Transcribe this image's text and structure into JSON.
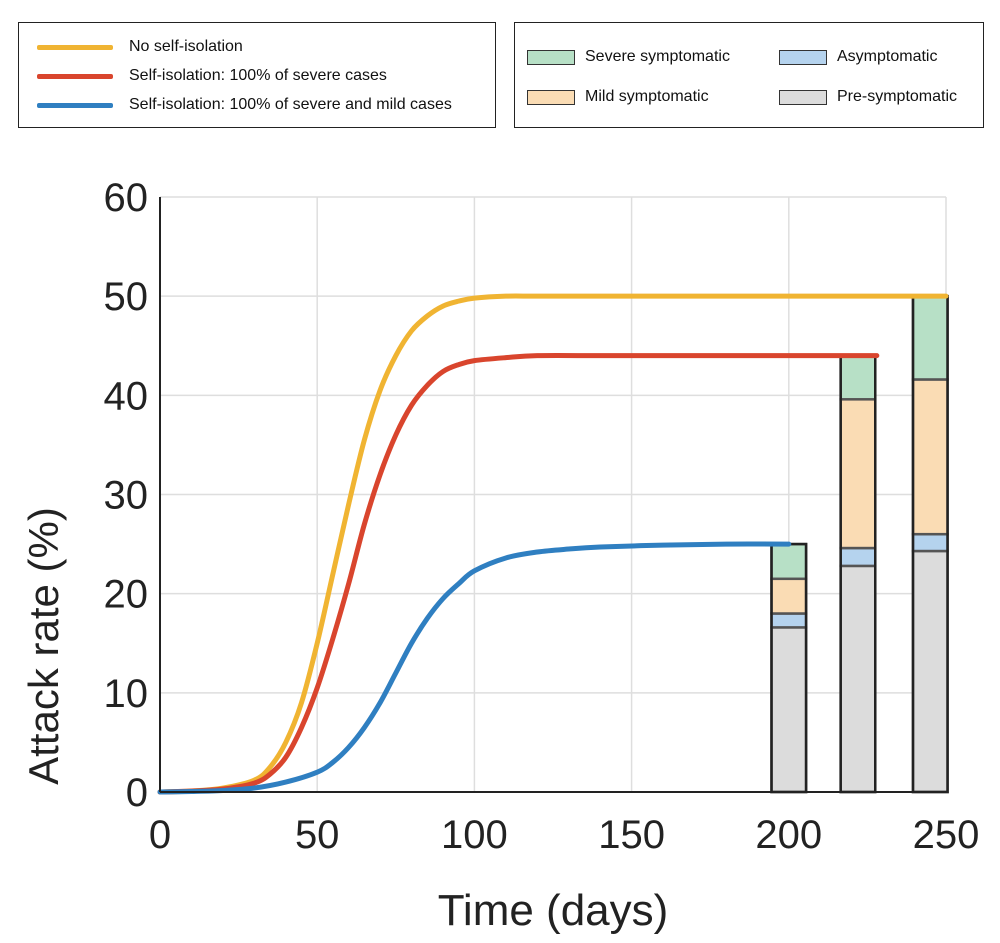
{
  "legend_lines": [
    {
      "label": "No self-isolation",
      "color": "#f0b432"
    },
    {
      "label": "Self-isolation: 100% of severe cases",
      "color": "#d9452d"
    },
    {
      "label": "Self-isolation: 100% of severe and mild cases",
      "color": "#2f7fc1"
    }
  ],
  "legend_bars": [
    {
      "label": "Severe symptomatic",
      "color": "#b7e0c6"
    },
    {
      "label": "Asymptomatic",
      "color": "#b5d3ee"
    },
    {
      "label": "Mild symptomatic",
      "color": "#fadcb4"
    },
    {
      "label": "Pre-symptomatic",
      "color": "#dcdcdc"
    }
  ],
  "chart_data": {
    "type": "line",
    "xlabel": "Time (days)",
    "ylabel": "Attack rate (%)",
    "xlim": [
      0,
      250
    ],
    "ylim": [
      0,
      60
    ],
    "xticks": [
      0,
      50,
      100,
      150,
      200,
      250
    ],
    "yticks": [
      0,
      10,
      20,
      30,
      40,
      50,
      60
    ],
    "grid": true,
    "series": [
      {
        "name": "No self-isolation",
        "color": "#f0b432",
        "x": [
          0,
          10,
          20,
          30,
          35,
          40,
          45,
          50,
          55,
          60,
          65,
          70,
          75,
          80,
          85,
          90,
          95,
          100,
          110,
          120,
          140,
          160,
          200,
          250
        ],
        "y": [
          0,
          0.1,
          0.4,
          1.2,
          2.5,
          5,
          9,
          15,
          22,
          29,
          35.5,
          40.5,
          44,
          46.5,
          48,
          49,
          49.5,
          49.8,
          50,
          50,
          50,
          50,
          50,
          50
        ]
      },
      {
        "name": "Self-isolation: 100% of severe cases",
        "color": "#d9452d",
        "x": [
          0,
          10,
          20,
          30,
          35,
          40,
          45,
          50,
          55,
          60,
          65,
          70,
          75,
          80,
          85,
          90,
          95,
          100,
          110,
          120,
          140,
          160,
          200,
          228
        ],
        "y": [
          0,
          0.1,
          0.3,
          0.9,
          1.8,
          3.5,
          6.5,
          10.5,
          15.5,
          21,
          27,
          32,
          36,
          39,
          41,
          42.4,
          43.1,
          43.5,
          43.8,
          44,
          44,
          44,
          44,
          44
        ]
      },
      {
        "name": "Self-isolation: 100% of severe and mild cases",
        "color": "#2f7fc1",
        "x": [
          0,
          10,
          20,
          30,
          40,
          50,
          55,
          60,
          65,
          70,
          75,
          80,
          85,
          90,
          95,
          100,
          110,
          120,
          130,
          140,
          160,
          180,
          200
        ],
        "y": [
          0,
          0.05,
          0.15,
          0.4,
          1,
          2,
          3,
          4.5,
          6.5,
          9,
          12,
          15,
          17.5,
          19.5,
          21,
          22.3,
          23.6,
          24.2,
          24.5,
          24.7,
          24.9,
          25,
          25
        ]
      }
    ],
    "bars": [
      {
        "x": 200,
        "pre_symptomatic": 16.6,
        "asymptomatic": 1.4,
        "mild_symptomatic": 3.5,
        "severe_symptomatic": 3.5
      },
      {
        "x": 222,
        "pre_symptomatic": 22.8,
        "asymptomatic": 1.8,
        "mild_symptomatic": 15,
        "severe_symptomatic": 4.4
      },
      {
        "x": 245,
        "pre_symptomatic": 24.3,
        "asymptomatic": 1.7,
        "mild_symptomatic": 15.6,
        "severe_symptomatic": 8.4
      }
    ]
  }
}
